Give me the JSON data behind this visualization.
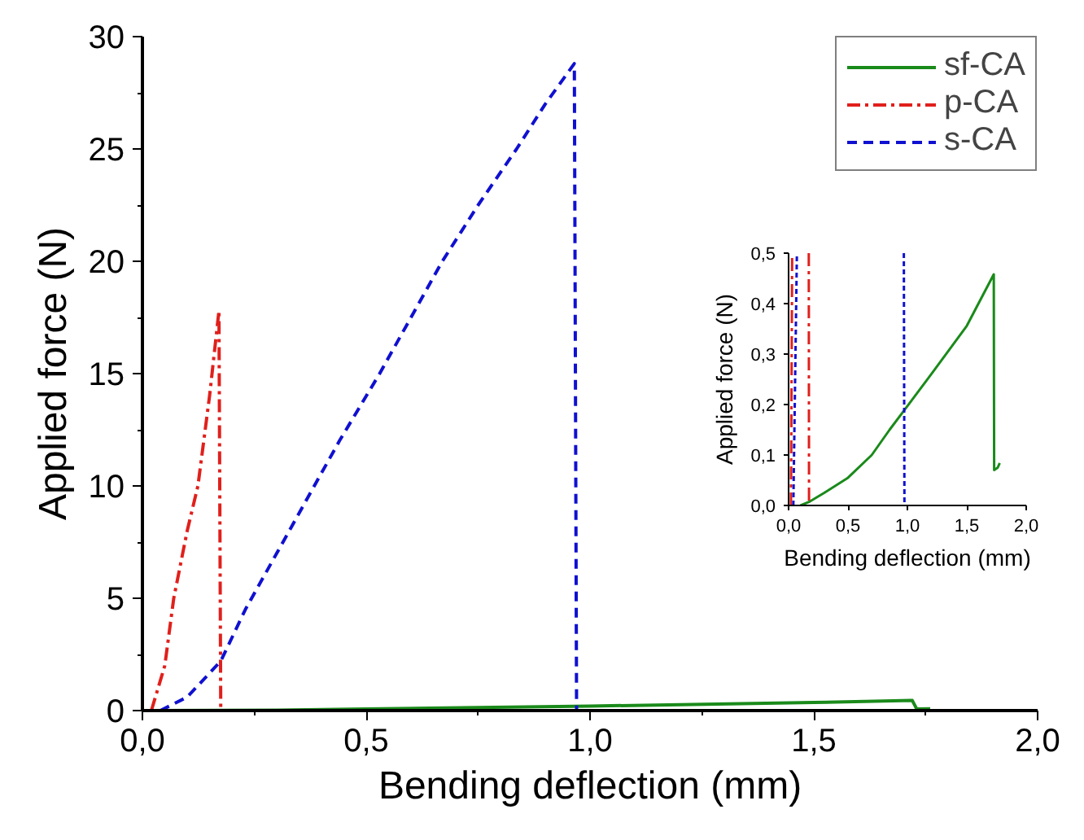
{
  "chart_data": [
    {
      "type": "line",
      "xlabel": "Bending deflection (mm)",
      "ylabel": "Applied force (N)",
      "xlim": [
        0,
        2
      ],
      "ylim": [
        0,
        30
      ],
      "xticks": [
        {
          "value": 0,
          "label": "0,0"
        },
        {
          "value": 0.25,
          "label": null
        },
        {
          "value": 0.5,
          "label": "0,5"
        },
        {
          "value": 0.75,
          "label": null
        },
        {
          "value": 1,
          "label": "1,0"
        },
        {
          "value": 1.25,
          "label": null
        },
        {
          "value": 1.5,
          "label": "1,5"
        },
        {
          "value": 1.75,
          "label": null
        },
        {
          "value": 2,
          "label": "2,0"
        }
      ],
      "yticks": [
        0,
        {
          "value": 2.5,
          "label": null
        },
        5,
        {
          "value": 7.5,
          "label": null
        },
        10,
        {
          "value": 12.5,
          "label": null
        },
        15,
        {
          "value": 17.5,
          "label": null
        },
        20,
        {
          "value": 22.5,
          "label": null
        },
        25,
        {
          "value": 27.5,
          "label": null
        },
        30
      ],
      "grid": false,
      "legend": "top right",
      "series": [
        {
          "name": "sf-CA",
          "color": "#1a8a1a",
          "line_style": "solid",
          "x": [
            0,
            0.3,
            0.5,
            1.0,
            1.5,
            1.72,
            1.73,
            1.76
          ],
          "values": [
            0,
            0.02,
            0.07,
            0.2,
            0.36,
            0.45,
            0.07,
            0.08
          ]
        },
        {
          "name": "p-CA",
          "color": "#e0201c",
          "line_style": "dashdot",
          "x": [
            0.02,
            0.05,
            0.07,
            0.1,
            0.124,
            0.15,
            0.171,
            0.175
          ],
          "values": [
            0,
            2,
            5,
            8,
            10,
            14,
            17.8,
            0
          ]
        },
        {
          "name": "s-CA",
          "color": "#1010d0",
          "line_style": "dashed",
          "x": [
            0.04,
            0.1,
            0.175,
            0.23,
            0.3,
            0.37,
            0.44,
            0.53,
            0.6,
            0.67,
            0.75,
            0.836,
            0.9,
            0.965,
            0.97
          ],
          "values": [
            0,
            0.6,
            2.2,
            4.5,
            7,
            9.5,
            12,
            15,
            17.5,
            20,
            22.5,
            25,
            27,
            28.8,
            0
          ]
        }
      ]
    },
    {
      "type": "line",
      "xlabel": "Bending deflection (mm)",
      "ylabel": "Applied force (N)",
      "xlim": [
        0,
        2
      ],
      "ylim": [
        0,
        0.5
      ],
      "xticks": [
        {
          "value": 0,
          "label": "0,0"
        },
        {
          "value": 0.5,
          "label": "0,5"
        },
        {
          "value": 1,
          "label": "1,0"
        },
        {
          "value": 1.5,
          "label": "1,5"
        },
        {
          "value": 2,
          "label": "2,0"
        }
      ],
      "yticks": [
        {
          "value": 0,
          "label": "0,0"
        },
        {
          "value": 0.1,
          "label": "0,1"
        },
        {
          "value": 0.2,
          "label": "0,2"
        },
        {
          "value": 0.3,
          "label": "0,3"
        },
        {
          "value": 0.4,
          "label": "0,4"
        },
        {
          "value": 0.5,
          "label": "0,5"
        }
      ],
      "grid": false,
      "legend": false,
      "series": [
        {
          "color": "#1a8a1a",
          "line_style": "solid",
          "x": [
            0.1,
            0.18,
            0.3,
            0.5,
            0.7,
            0.85,
            1.0,
            1.2,
            1.5,
            1.727,
            1.73,
            1.76,
            1.777
          ],
          "values": [
            0,
            0.008,
            0.025,
            0.055,
            0.1,
            0.15,
            0.197,
            0.26,
            0.356,
            0.458,
            0.07,
            0.075,
            0.084
          ]
        },
        {
          "color": "#e0201c",
          "line_style": "dashdot",
          "x": [
            0.02,
            0.03,
            null,
            0.17,
            0.172
          ],
          "values": [
            0,
            0.5,
            null,
            0.5,
            0
          ]
        },
        {
          "color": "#1010d0",
          "line_style": "dotted",
          "x": [
            0.04,
            0.07,
            null,
            0.97,
            0.975
          ],
          "values": [
            0,
            0.5,
            null,
            0.5,
            0
          ]
        }
      ]
    }
  ]
}
